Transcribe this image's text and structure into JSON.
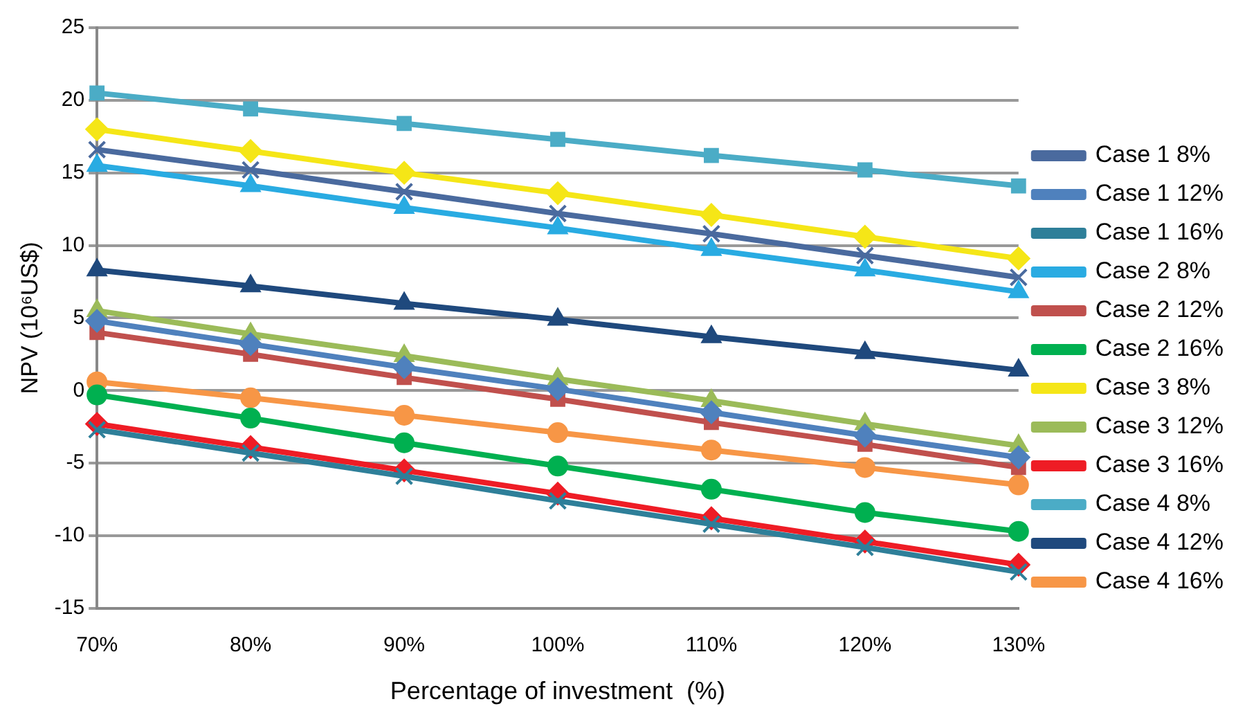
{
  "chart_data": {
    "type": "line",
    "xlabel": "Percentage of investment  (%)",
    "ylabel": "NPV (10⁶US$)",
    "categories": [
      "70%",
      "80%",
      "90%",
      "100%",
      "110%",
      "120%",
      "130%"
    ],
    "ylim": [
      -15,
      25
    ],
    "yticks": [
      -15,
      -10,
      -5,
      0,
      5,
      10,
      15,
      20,
      25
    ],
    "grid": "y",
    "legend": "right",
    "line_style": "solid",
    "series": [
      {
        "name": "Case 1 8%",
        "color": "#4a6a9e",
        "marker": "cross",
        "values": [
          16.6,
          15.2,
          13.7,
          12.2,
          10.8,
          9.3,
          7.8
        ]
      },
      {
        "name": "Case 1 12%",
        "color": "#4f81bd",
        "marker": "diamond",
        "values": [
          4.8,
          3.2,
          1.6,
          0.1,
          -1.5,
          -3.1,
          -4.6
        ]
      },
      {
        "name": "Case 1 16%",
        "color": "#2e7f99",
        "marker": "cross",
        "values": [
          -2.7,
          -4.3,
          -5.9,
          -7.6,
          -9.2,
          -10.8,
          -12.5
        ]
      },
      {
        "name": "Case 2 8%",
        "color": "#29abe2",
        "marker": "triangle",
        "values": [
          15.5,
          14.1,
          12.6,
          11.2,
          9.7,
          8.3,
          6.8
        ]
      },
      {
        "name": "Case 2 12%",
        "color": "#c0504d",
        "marker": "square",
        "values": [
          4.0,
          2.5,
          0.9,
          -0.6,
          -2.2,
          -3.7,
          -5.3
        ]
      },
      {
        "name": "Case 2 16%",
        "color": "#00b050",
        "marker": "circle",
        "values": [
          -0.3,
          -1.9,
          -3.6,
          -5.2,
          -6.8,
          -8.4,
          -9.7
        ]
      },
      {
        "name": "Case 3 8%",
        "color": "#f5e617",
        "marker": "diamond",
        "values": [
          18.0,
          16.5,
          15.0,
          13.6,
          12.1,
          10.6,
          9.1
        ]
      },
      {
        "name": "Case 3 12%",
        "color": "#9bbb59",
        "marker": "triangle",
        "values": [
          5.5,
          3.9,
          2.4,
          0.8,
          -0.7,
          -2.3,
          -3.8
        ]
      },
      {
        "name": "Case 3 16%",
        "color": "#ee1c25",
        "marker": "diamond",
        "values": [
          -2.3,
          -3.9,
          -5.5,
          -7.1,
          -8.8,
          -10.4,
          -12.0
        ]
      },
      {
        "name": "Case 4 8%",
        "color": "#4bacc6",
        "marker": "square",
        "values": [
          20.5,
          19.4,
          18.4,
          17.3,
          16.2,
          15.2,
          14.1
        ]
      },
      {
        "name": "Case 4 12%",
        "color": "#1f497d",
        "marker": "triangle",
        "values": [
          8.3,
          7.2,
          6.0,
          4.9,
          3.7,
          2.6,
          1.4
        ]
      },
      {
        "name": "Case 4 16%",
        "color": "#f79646",
        "marker": "circle",
        "values": [
          0.6,
          -0.5,
          -1.7,
          -2.9,
          -4.1,
          -5.3,
          -6.5
        ]
      }
    ]
  }
}
